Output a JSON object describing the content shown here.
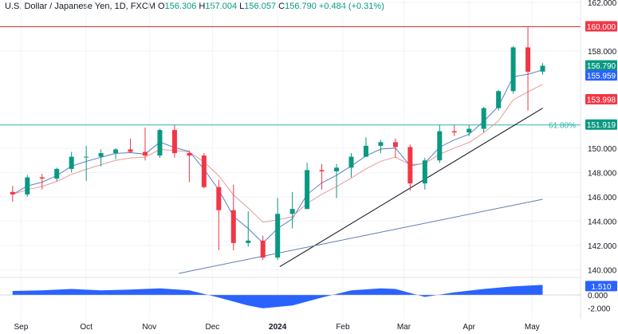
{
  "header": {
    "symbol": "U.S. Dollar / Japanese Yen, 1D, FXCM",
    "open_label": "O",
    "open": "156.306",
    "high_label": "H",
    "high": "157.004",
    "low_label": "L",
    "low": "156.057",
    "close_label": "C",
    "close": "156.790",
    "change": "+0.484 (+0.31%)"
  },
  "colors": {
    "up": "#089981",
    "down": "#f23645",
    "ema_fast": "#5b7fc7",
    "ema_slow": "#e89a9a",
    "resistance_line": "#d32f2f",
    "fib_line": "#2fb2a8",
    "trendline_steep": "#131722",
    "trendline_long": "#5b7fb0",
    "indicator_fill": "#2962ff",
    "grid": "#f0f3fa"
  },
  "chart_data": {
    "type": "candlestick",
    "ylim": [
      139.5,
      162.2
    ],
    "y_ticks": [
      "162.000",
      "158.000",
      "150.000",
      "148.000",
      "146.000",
      "144.000",
      "142.000",
      "140.000"
    ],
    "x_ticks": [
      "Sep",
      "Oct",
      "Nov",
      "Dec",
      "2024",
      "Feb",
      "Mar",
      "Apr",
      "May"
    ],
    "x_tick_dates": [
      "2023-09-01",
      "2023-10-02",
      "2023-11-01",
      "2023-12-01",
      "2024-01-01",
      "2024-02-01",
      "2024-03-01",
      "2024-04-01",
      "2024-05-01"
    ],
    "price_labels": [
      {
        "text": "160.000",
        "value": 160.0,
        "color": "#f23645"
      },
      {
        "text": "156.790",
        "value": 156.79,
        "color": "#089981"
      },
      {
        "text": "155.959",
        "value": 155.959,
        "color": "#2962ff"
      },
      {
        "text": "153.998",
        "value": 153.998,
        "color": "#f23645"
      },
      {
        "text": "151.919",
        "value": 151.919,
        "color": "#089981"
      }
    ],
    "horizontal_lines": [
      {
        "name": "resistance",
        "value": 160.0
      },
      {
        "name": "fib-61.8",
        "value": 151.919,
        "label": "61.80%"
      }
    ],
    "trendlines": [
      {
        "name": "steep-trendline",
        "from": {
          "date": "2024-01-02",
          "price": 140.25
        },
        "to": {
          "date": "2024-05-06",
          "price": 153.3
        }
      },
      {
        "name": "long-trendline",
        "from": {
          "date": "2023-11-15",
          "price": 139.7
        },
        "to": {
          "date": "2024-05-06",
          "price": 145.8
        }
      }
    ],
    "candles": [
      [
        "2023-08-28",
        146.4,
        146.9,
        145.6,
        146.2
      ],
      [
        "2023-09-04",
        146.2,
        147.8,
        146.0,
        147.6
      ],
      [
        "2023-09-11",
        147.6,
        147.9,
        146.6,
        147.5
      ],
      [
        "2023-09-18",
        147.5,
        148.4,
        147.3,
        148.3
      ],
      [
        "2023-09-25",
        148.3,
        149.7,
        148.0,
        149.3
      ],
      [
        "2023-10-02",
        149.3,
        150.2,
        147.3,
        149.3
      ],
      [
        "2023-10-09",
        149.3,
        149.9,
        148.5,
        149.6
      ],
      [
        "2023-10-16",
        149.6,
        150.0,
        149.1,
        149.9
      ],
      [
        "2023-10-23",
        149.9,
        150.8,
        149.6,
        149.7
      ],
      [
        "2023-10-30",
        149.7,
        151.7,
        149.0,
        149.4
      ],
      [
        "2023-11-06",
        149.4,
        151.6,
        149.2,
        151.5
      ],
      [
        "2023-11-13",
        151.5,
        151.9,
        149.2,
        149.6
      ],
      [
        "2023-11-20",
        149.6,
        149.8,
        147.2,
        149.4
      ],
      [
        "2023-11-27",
        149.4,
        149.6,
        146.7,
        146.8
      ],
      [
        "2023-12-04",
        146.8,
        147.4,
        141.6,
        144.9
      ],
      [
        "2023-12-11",
        144.9,
        147.0,
        141.6,
        142.2
      ],
      [
        "2023-12-18",
        142.2,
        144.8,
        141.9,
        142.4
      ],
      [
        "2023-12-25",
        142.4,
        142.8,
        140.8,
        141.0
      ],
      [
        "2024-01-01",
        141.0,
        145.9,
        140.8,
        144.6
      ],
      [
        "2024-01-08",
        144.6,
        146.4,
        143.4,
        145.0
      ],
      [
        "2024-01-15",
        145.0,
        148.8,
        145.0,
        148.2
      ],
      [
        "2024-01-22",
        148.2,
        148.7,
        146.6,
        148.1
      ],
      [
        "2024-01-29",
        148.1,
        148.7,
        145.9,
        148.4
      ],
      [
        "2024-02-05",
        148.4,
        149.6,
        147.6,
        149.3
      ],
      [
        "2024-02-12",
        149.3,
        150.9,
        149.3,
        150.2
      ],
      [
        "2024-02-19",
        150.2,
        150.7,
        149.6,
        150.5
      ],
      [
        "2024-02-26",
        150.5,
        150.8,
        149.2,
        150.1
      ],
      [
        "2024-03-04",
        150.1,
        150.3,
        146.5,
        147.1
      ],
      [
        "2024-03-11",
        147.1,
        149.2,
        146.6,
        149.0
      ],
      [
        "2024-03-18",
        149.0,
        151.9,
        148.8,
        151.4
      ],
      [
        "2024-03-25",
        151.4,
        151.9,
        151.0,
        151.3
      ],
      [
        "2024-04-01",
        151.3,
        151.9,
        151.0,
        151.6
      ],
      [
        "2024-04-08",
        151.6,
        153.4,
        151.3,
        153.3
      ],
      [
        "2024-04-15",
        153.3,
        154.8,
        153.1,
        154.7
      ],
      [
        "2024-04-22",
        154.7,
        158.4,
        154.5,
        158.3
      ],
      [
        "2024-04-29",
        158.3,
        160.0,
        153.1,
        156.3
      ],
      [
        "2024-05-06",
        156.306,
        157.004,
        156.057,
        156.79
      ]
    ],
    "indicator": {
      "label": "1.510",
      "ticks": [
        "0.000",
        "-2.000"
      ],
      "range": [
        -3.6,
        2.4
      ],
      "values": [
        [
          "2023-08-28",
          0.6
        ],
        [
          "2023-09-11",
          0.7
        ],
        [
          "2023-09-25",
          0.9
        ],
        [
          "2023-10-09",
          0.7
        ],
        [
          "2023-10-23",
          0.8
        ],
        [
          "2023-11-06",
          1.0
        ],
        [
          "2023-11-20",
          0.7
        ],
        [
          "2023-12-04",
          -0.4
        ],
        [
          "2023-12-18",
          -1.6
        ],
        [
          "2023-12-25",
          -2.0
        ],
        [
          "2024-01-08",
          -1.6
        ],
        [
          "2024-01-22",
          -0.4
        ],
        [
          "2024-02-05",
          0.7
        ],
        [
          "2024-02-19",
          1.0
        ],
        [
          "2024-02-26",
          0.9
        ],
        [
          "2024-03-04",
          0.3
        ],
        [
          "2024-03-11",
          -0.3
        ],
        [
          "2024-03-25",
          0.4
        ],
        [
          "2024-04-08",
          0.9
        ],
        [
          "2024-04-22",
          1.3
        ],
        [
          "2024-05-06",
          1.51
        ]
      ]
    }
  }
}
